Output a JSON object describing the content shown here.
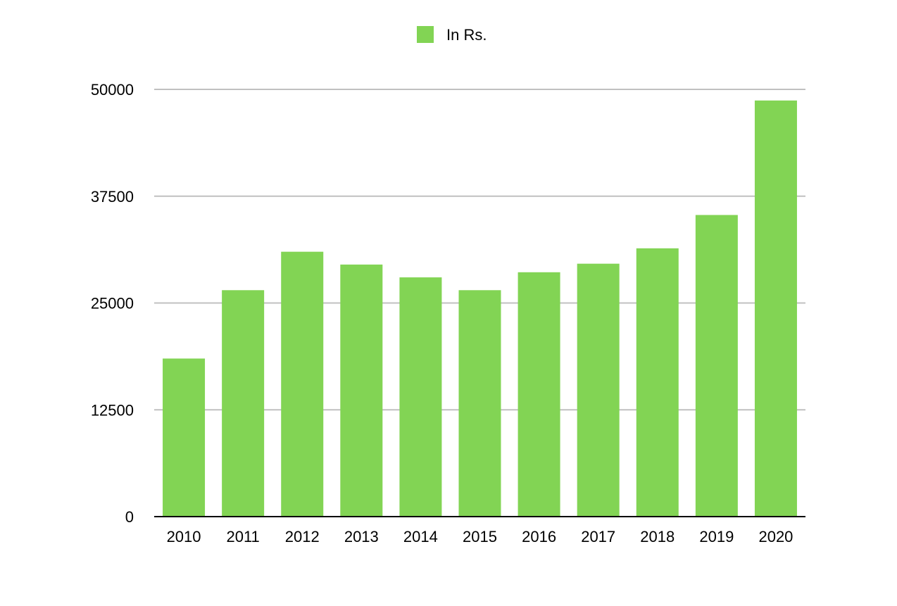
{
  "chart_data": {
    "type": "bar",
    "title": "",
    "xlabel": "",
    "ylabel": "",
    "categories": [
      "2010",
      "2011",
      "2012",
      "2013",
      "2014",
      "2015",
      "2016",
      "2017",
      "2018",
      "2019",
      "2020"
    ],
    "series": [
      {
        "name": "In Rs.",
        "color": "#82d454",
        "values": [
          18500,
          26500,
          31000,
          29500,
          28000,
          26500,
          28600,
          29600,
          31400,
          35300,
          48700
        ]
      }
    ],
    "ylim": [
      0,
      50000
    ],
    "yticks": [
      0,
      12500,
      25000,
      37500,
      50000
    ],
    "ytick_labels": [
      "0",
      "12500",
      "25000",
      "37500",
      "50000"
    ],
    "grid": true,
    "legend_position": "top-center",
    "gridline_color": "#c0c0c0",
    "axis_color": "#000000"
  }
}
